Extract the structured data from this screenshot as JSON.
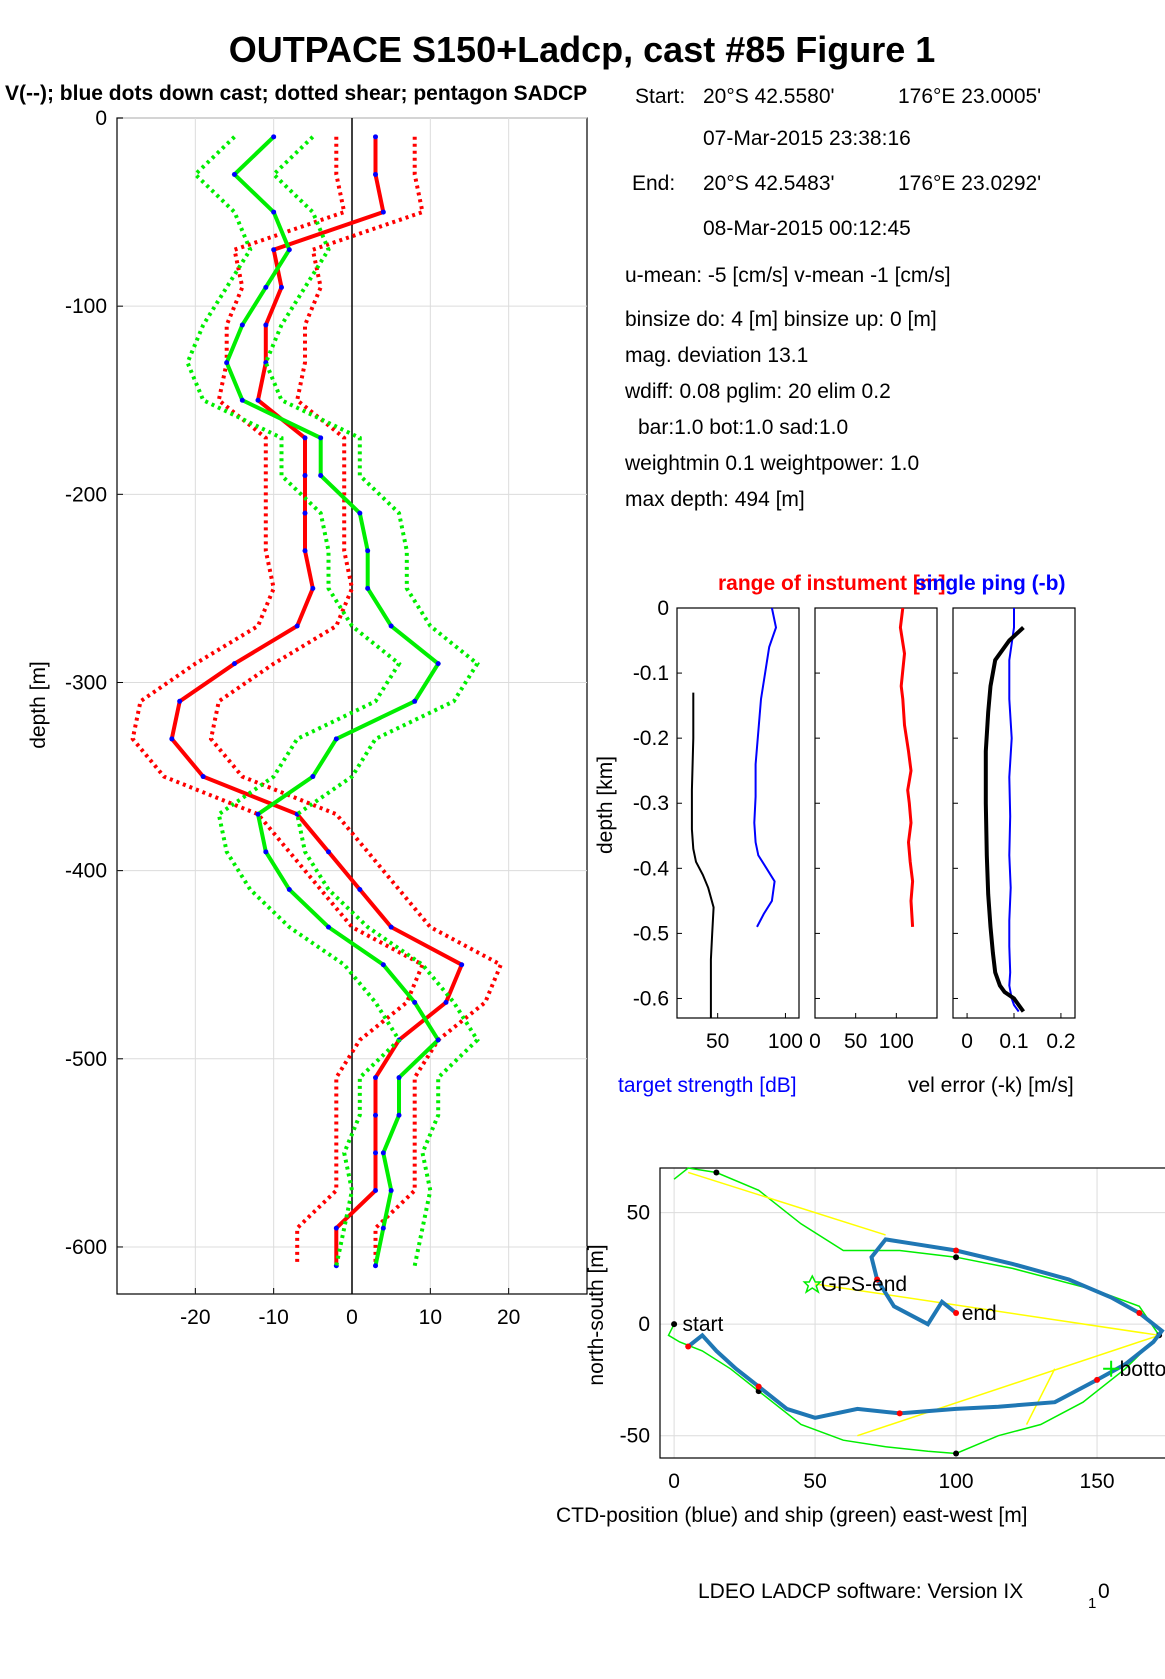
{
  "figure": {
    "title": "OUTPACE S150+Ladcp, cast #85  Figure 1",
    "subtitle": "V(--); blue dots down cast; dotted shear; pentagon SADCP",
    "footer": "LDEO LADCP software: Version IX",
    "footer_sub": "1",
    "footer_tail": "0"
  },
  "info": {
    "start_label": "Start:",
    "start_lat": "20°S 42.5580'",
    "start_lon": "176°E 23.0005'",
    "start_time": "07-Mar-2015 23:38:16",
    "end_label": "End:",
    "end_lat": "20°S 42.5483'",
    "end_lon": "176°E 23.0292'",
    "end_time": "08-Mar-2015 00:12:45",
    "means": "u-mean:  -5 [cm/s]    v-mean  -1 [cm/s]",
    "binsize": "binsize do: 4 [m]  binsize up:  0 [m]",
    "magdev": "mag. deviation 13.1",
    "wdiff": "wdiff: 0.08  pglim: 20  elim 0.2",
    "bar": "bar:1.0 bot:1.0 sad:1.0",
    "weight": "weightmin 0.1  weightpower: 1.0",
    "maxdepth": "max depth: 494 [m]"
  },
  "colors": {
    "u_red": "#ff0000",
    "v_green": "#00ee00",
    "blue": "#0000ff",
    "ctd_blue": "#1f77b4",
    "yellow": "#ffff00",
    "black": "#000000"
  },
  "chart_data": [
    {
      "type": "line",
      "name": "velocity-profile",
      "ylabel": "depth [m]",
      "xlabel": "",
      "xlim": [
        -30,
        30
      ],
      "ylim": [
        -625,
        0
      ],
      "xticks": [
        -20,
        -10,
        0,
        10,
        20
      ],
      "yticks": [
        0,
        -100,
        -200,
        -300,
        -400,
        -500,
        -600
      ],
      "grid": true,
      "depth": [
        -10,
        -30,
        -50,
        -70,
        -90,
        -110,
        -130,
        -150,
        -170,
        -190,
        -210,
        -230,
        -250,
        -270,
        -290,
        -310,
        -330,
        -350,
        -370,
        -390,
        -410,
        -430,
        -450,
        -470,
        -490,
        -510,
        -530,
        -550,
        -570,
        -590,
        -610
      ],
      "series": [
        {
          "name": "u",
          "color": "red",
          "values": [
            3,
            3,
            4,
            -10,
            -9,
            -11,
            -11,
            -12,
            -6,
            -6,
            -6,
            -6,
            -5,
            -7,
            -15,
            -22,
            -23,
            -19,
            -7,
            -3,
            1,
            5,
            14,
            12,
            6,
            3,
            3,
            3,
            3,
            -2,
            -2
          ]
        },
        {
          "name": "v",
          "color": "green",
          "values": [
            -10,
            -15,
            -10,
            -8,
            -11,
            -14,
            -16,
            -14,
            -4,
            -4,
            1,
            2,
            2,
            5,
            11,
            8,
            -2,
            -5,
            -12,
            -11,
            -8,
            -3,
            4,
            8,
            11,
            6,
            6,
            4,
            5,
            4,
            3
          ]
        }
      ]
    },
    {
      "type": "line",
      "name": "target-strength",
      "xlabel": "target strength [dB]",
      "ylabel": "depth [km]",
      "xlim": [
        20,
        110
      ],
      "ylim": [
        -0.63,
        0
      ],
      "xticks": [
        50,
        100
      ],
      "yticks": [
        0,
        -0.1,
        -0.2,
        -0.3,
        -0.4,
        -0.5,
        -0.6
      ],
      "series": [
        {
          "name": "target strength",
          "color": "blue",
          "x": [
            90,
            93,
            88,
            85,
            82,
            80,
            78,
            78,
            77,
            78,
            80,
            86,
            92,
            90,
            84,
            79
          ],
          "y": [
            0,
            -0.03,
            -0.06,
            -0.1,
            -0.14,
            -0.19,
            -0.24,
            -0.29,
            -0.33,
            -0.36,
            -0.38,
            -0.4,
            -0.42,
            -0.45,
            -0.47,
            -0.49
          ]
        },
        {
          "name": "range",
          "color": "black",
          "x": [
            32,
            32,
            31,
            31,
            32,
            34,
            39,
            43,
            47,
            46,
            45,
            45,
            45,
            45
          ],
          "y": [
            -0.13,
            -0.2,
            -0.28,
            -0.34,
            -0.37,
            -0.39,
            -0.41,
            -0.43,
            -0.46,
            -0.5,
            -0.54,
            -0.58,
            -0.61,
            -0.63
          ]
        }
      ]
    },
    {
      "type": "line",
      "name": "range-of-instrument",
      "title": "range of instument [m]",
      "xlim": [
        0,
        150
      ],
      "ylim": [
        -0.63,
        0
      ],
      "xticks": [
        0,
        50,
        100
      ],
      "series": [
        {
          "name": "range",
          "color": "red",
          "x": [
            108,
            105,
            110,
            106,
            108,
            110,
            115,
            118,
            114,
            116,
            118,
            115,
            117,
            120,
            118,
            119,
            120
          ],
          "y": [
            0,
            -0.03,
            -0.07,
            -0.12,
            -0.14,
            -0.18,
            -0.22,
            -0.25,
            -0.28,
            -0.3,
            -0.33,
            -0.36,
            -0.39,
            -0.42,
            -0.45,
            -0.47,
            -0.49
          ]
        }
      ]
    },
    {
      "type": "line",
      "name": "velocity-error",
      "title": "single ping (-b)",
      "xlabel": "vel error (-k) [m/s]",
      "xlim": [
        -0.03,
        0.23
      ],
      "ylim": [
        -0.63,
        0
      ],
      "xticks": [
        0,
        0.1,
        0.2
      ],
      "series": [
        {
          "name": "single ping",
          "color": "blue",
          "x": [
            0.1,
            0.1,
            0.09,
            0.09,
            0.095,
            0.09,
            0.092,
            0.09,
            0.093,
            0.09,
            0.09,
            0.092,
            0.09,
            0.095,
            0.1,
            0.11
          ],
          "y": [
            0,
            -0.03,
            -0.08,
            -0.14,
            -0.2,
            -0.26,
            -0.32,
            -0.38,
            -0.43,
            -0.48,
            -0.52,
            -0.56,
            -0.58,
            -0.6,
            -0.61,
            -0.62
          ]
        },
        {
          "name": "vel error",
          "color": "black",
          "x": [
            0.12,
            0.09,
            0.06,
            0.05,
            0.045,
            0.04,
            0.04,
            0.042,
            0.045,
            0.05,
            0.055,
            0.06,
            0.07,
            0.08,
            0.1,
            0.11,
            0.12
          ],
          "y": [
            -0.03,
            -0.05,
            -0.08,
            -0.12,
            -0.16,
            -0.22,
            -0.3,
            -0.38,
            -0.44,
            -0.49,
            -0.53,
            -0.56,
            -0.58,
            -0.59,
            -0.6,
            -0.61,
            -0.62
          ]
        }
      ]
    },
    {
      "type": "line",
      "name": "position",
      "xlabel": "CTD-position (blue) and ship (green) east-west [m]",
      "ylabel": "north-south [m]",
      "xlim": [
        -5,
        178
      ],
      "ylim": [
        -60,
        70
      ],
      "xticks": [
        0,
        50,
        100,
        150
      ],
      "yticks": [
        50,
        0,
        -50
      ],
      "labels": [
        "start",
        "GPS-end",
        "end",
        "bottom"
      ],
      "series": [
        {
          "name": "CTD",
          "color": "blue",
          "x": [
            5,
            10,
            15,
            22,
            30,
            40,
            50,
            65,
            80,
            100,
            115,
            135,
            150,
            160,
            170,
            173,
            165,
            155,
            140,
            120,
            100,
            85,
            75,
            70,
            72,
            78,
            90,
            95,
            100
          ],
          "y": [
            -10,
            -5,
            -12,
            -20,
            -28,
            -38,
            -42,
            -38,
            -40,
            -38,
            -37,
            -35,
            -25,
            -18,
            -8,
            -3,
            5,
            12,
            20,
            27,
            33,
            36,
            38,
            30,
            20,
            8,
            0,
            10,
            5
          ]
        },
        {
          "name": "ship",
          "color": "green",
          "x": [
            0,
            -2,
            2,
            10,
            20,
            30,
            45,
            60,
            75,
            90,
            100,
            115,
            130,
            145,
            160,
            172,
            165,
            150,
            135,
            120,
            100,
            80,
            60,
            45,
            30,
            15,
            5,
            0
          ],
          "y": [
            0,
            -5,
            -8,
            -12,
            -20,
            -30,
            -45,
            -52,
            -55,
            -57,
            -58,
            -50,
            -45,
            -35,
            -20,
            -5,
            8,
            15,
            20,
            25,
            30,
            33,
            33,
            45,
            60,
            68,
            70,
            65
          ]
        },
        {
          "name": "yellow",
          "color": "yellow",
          "x": [
            5,
            75,
            172,
            50,
            172,
            65,
            125,
            135
          ],
          "y": [
            68,
            40,
            -5,
            18,
            -5,
            -50,
            -45,
            -20
          ]
        }
      ]
    }
  ]
}
